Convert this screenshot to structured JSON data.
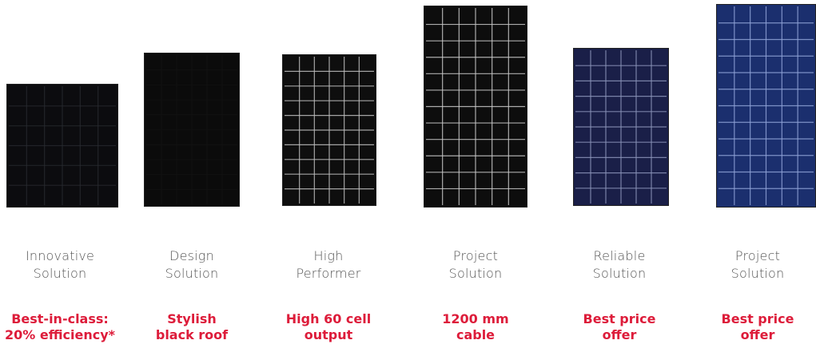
{
  "colors": {
    "accent": "#dd1c3a",
    "label": "#555555"
  },
  "products": [
    {
      "name_line1": "Innovative",
      "name_line2": "Solution",
      "feature_line1": "Best-in-class:",
      "feature_line2": "20% efficiency*",
      "panel_style": "black-grid",
      "panel_color": "#0c0c0f",
      "grid_color": "#2a2d33"
    },
    {
      "name_line1": "Design",
      "name_line2": "Solution",
      "feature_line1": "Stylish",
      "feature_line2": "black roof",
      "panel_style": "all-black",
      "panel_color": "#0b0b0b",
      "grid_color": "#161616"
    },
    {
      "name_line1": "High",
      "name_line2": "Performer",
      "feature_line1": "High 60 cell",
      "feature_line2": "output",
      "panel_style": "black-white-grid",
      "panel_color": "#0e0e0e",
      "grid_color": "#bdbdbd"
    },
    {
      "name_line1": "Project",
      "name_line2": "Solution",
      "feature_line1": "1200 mm",
      "feature_line2": "cable",
      "panel_style": "black-white-grid",
      "panel_color": "#0d0d0d",
      "grid_color": "#c8c8c8"
    },
    {
      "name_line1": "Reliable",
      "name_line2": "Solution",
      "feature_line1": "Best price",
      "feature_line2": "offer",
      "panel_style": "navy-grid",
      "panel_color": "#1a1f48",
      "grid_color": "#8a93b8"
    },
    {
      "name_line1": "Project",
      "name_line2": "Solution",
      "feature_line1": "Best price",
      "feature_line2": "offer",
      "panel_style": "blue-grid",
      "panel_color": "#1b2f6e",
      "grid_color": "#8fa2d6"
    }
  ]
}
